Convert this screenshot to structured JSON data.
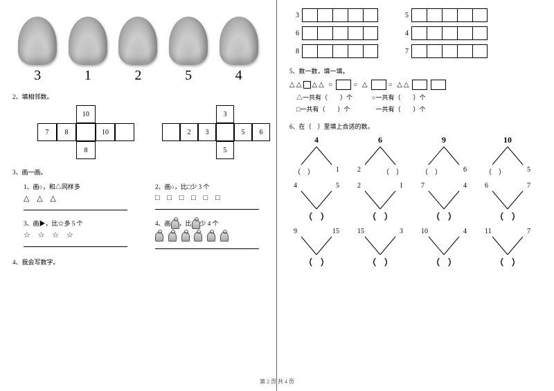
{
  "footer": "第 2 页 共 4 页",
  "left": {
    "hand_numbers": [
      "3",
      "1",
      "2",
      "5",
      "4"
    ],
    "q2": {
      "title": "2、填相邻数。",
      "cross1": [
        "",
        "",
        "10",
        "",
        "",
        "7",
        "8",
        "",
        "10",
        "",
        "",
        "",
        "8",
        "",
        ""
      ],
      "cross2_top": "3",
      "cross2_mid": [
        "",
        "2",
        "3",
        "",
        "5",
        "6"
      ],
      "cross2_bot": "5"
    },
    "q3": {
      "title": "3、画一画。",
      "s1_t": "1、画○，和△同样多",
      "s1_g": "△ △ △",
      "s2_t": "2、画○，比□少 3 个",
      "s2_g": "□ □ □ □ □ □",
      "s3_t": "3、画▶，比☆多 5 个",
      "s3_g": "☆ ☆ ☆ ☆",
      "s4_t": "4、画　，比　少 4 个",
      "s4_apple": "⌾"
    },
    "q4": "4、我会写数字。"
  },
  "right": {
    "practice_pairs": [
      [
        "3",
        "5"
      ],
      [
        "6",
        "4"
      ],
      [
        "8",
        "7"
      ]
    ],
    "q5": {
      "title": "5、数一数，填一填。",
      "totals": [
        "△一共有（　　）个",
        "○一共有（　　）个",
        "□一共有（　　）个",
        "　一共有（　　）个"
      ]
    },
    "q6": {
      "title": "6、在（　）里填上合适的数。",
      "row1": [
        {
          "t": "4",
          "l": "（　）",
          "r": "1"
        },
        {
          "t": "6",
          "l": "2",
          "r": "（　）"
        },
        {
          "t": "9",
          "l": "（　）",
          "r": "6"
        },
        {
          "t": "10",
          "l": "（　）",
          "r": "5"
        }
      ],
      "row2": [
        {
          "l": "4",
          "r": "5",
          "b": "（　）"
        },
        {
          "l": "2",
          "r": "1",
          "b": "（　）"
        },
        {
          "l": "7",
          "r": "4",
          "b": "（　）"
        },
        {
          "l": "6",
          "r": "7",
          "b": "（　）"
        }
      ],
      "row3": [
        {
          "l": "9",
          "r": "15",
          "b": "（　）"
        },
        {
          "l": "15",
          "r": "3",
          "b": "（　）"
        },
        {
          "l": "10",
          "r": "4",
          "b": "（　）"
        },
        {
          "l": "11",
          "r": "7",
          "b": "（　）"
        }
      ]
    }
  }
}
